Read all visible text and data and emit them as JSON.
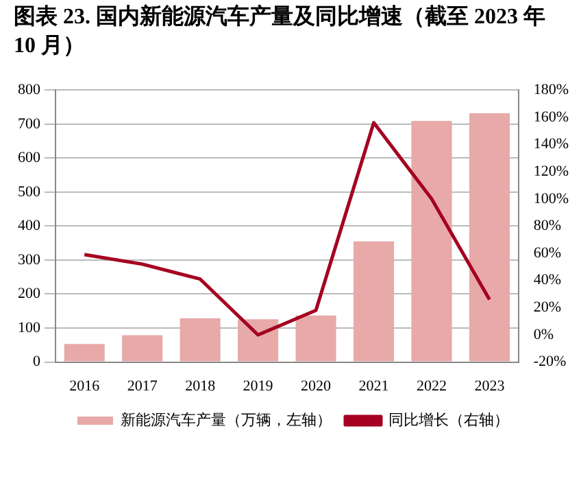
{
  "chart_data": {
    "type": "bar",
    "title": "图表 23. 国内新能源汽车产量及同比增速（截至 2023 年 10 月）",
    "categories": [
      "2016",
      "2017",
      "2018",
      "2019",
      "2020",
      "2021",
      "2022",
      "2023"
    ],
    "series": [
      {
        "name": "新能源汽车产量（万辆，左轴）",
        "color": "#e8a9a9",
        "values": [
          53,
          79,
          129,
          126,
          137,
          355,
          709,
          732
        ]
      },
      {
        "name": "同比增长（右轴）",
        "type": "line",
        "axis": "y2",
        "color": "#a50021",
        "values": [
          59,
          52,
          41,
          0,
          18,
          156,
          100,
          26
        ]
      }
    ],
    "ylim": [
      0,
      800
    ],
    "yticks": [
      0,
      100,
      200,
      300,
      400,
      500,
      600,
      700,
      800
    ],
    "y2lim": [
      -20,
      180
    ],
    "y2ticks": [
      {
        "value": -20,
        "label": "-20%"
      },
      {
        "value": 0,
        "label": "0%"
      },
      {
        "value": 20,
        "label": "20%"
      },
      {
        "value": 40,
        "label": "40%"
      },
      {
        "value": 60,
        "label": "60%"
      },
      {
        "value": 80,
        "label": "80%"
      },
      {
        "value": 100,
        "label": "100%"
      },
      {
        "value": 120,
        "label": "120%"
      },
      {
        "value": 140,
        "label": "140%"
      },
      {
        "value": 160,
        "label": "160%"
      },
      {
        "value": 180,
        "label": "180%"
      }
    ],
    "grid": "y",
    "legend": "bottom",
    "marker": "none"
  }
}
